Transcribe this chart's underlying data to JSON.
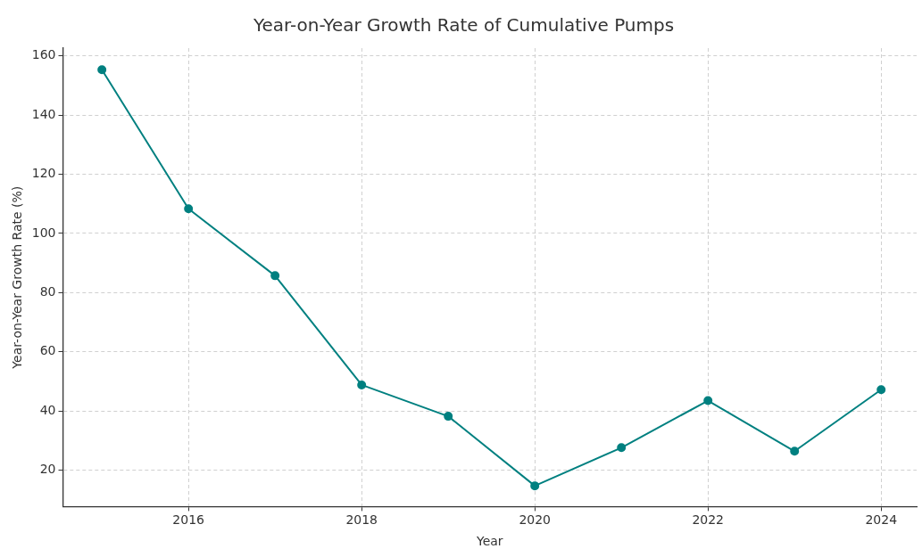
{
  "chart_data": {
    "type": "line",
    "title": "Year-on-Year Growth Rate of Cumulative Pumps",
    "xlabel": "Year",
    "ylabel": "Year-on-Year Growth Rate (%)",
    "x": [
      2015,
      2016,
      2017,
      2018,
      2019,
      2020,
      2021,
      2022,
      2023,
      2024
    ],
    "series": [
      {
        "color": "#008080",
        "values": [
          155.3,
          108.3,
          85.7,
          48.8,
          38.2,
          14.7,
          27.6,
          43.5,
          26.4,
          47.2
        ]
      }
    ],
    "xlim": [
      2014.55,
      2024.41
    ],
    "xticks": [
      2016,
      2018,
      2020,
      2022,
      2024
    ],
    "ylim": [
      7.7,
      162.6
    ],
    "yticks": [
      20,
      40,
      60,
      80,
      100,
      120,
      140,
      160
    ],
    "grid": true,
    "marker": "circle",
    "line_style": "solid",
    "legend": false
  }
}
